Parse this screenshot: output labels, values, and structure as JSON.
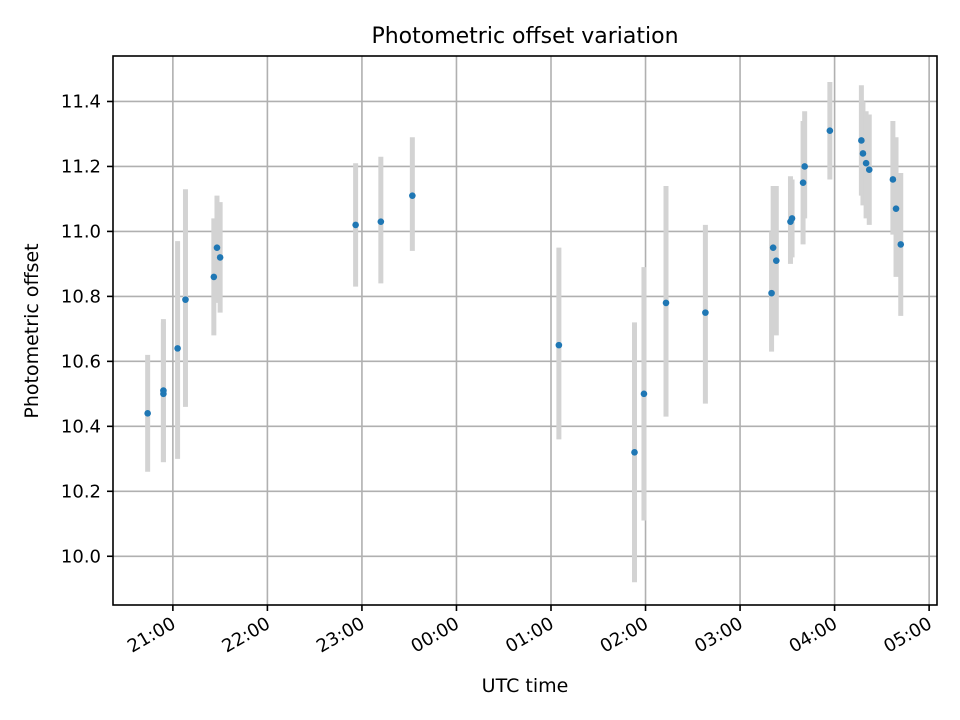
{
  "chart_data": {
    "type": "scatter",
    "title": "Photometric offset variation",
    "xlabel": "UTC time",
    "ylabel": "Photometric offset",
    "x_axis_type": "time",
    "xlim": [
      "20:22",
      "05:05"
    ],
    "ylim": [
      9.85,
      11.54
    ],
    "xticks": [
      "21:00",
      "22:00",
      "23:00",
      "00:00",
      "01:00",
      "02:00",
      "03:00",
      "04:00",
      "05:00"
    ],
    "yticks": [
      10.0,
      10.2,
      10.4,
      10.6,
      10.8,
      11.0,
      11.2,
      11.4
    ],
    "grid": true,
    "point_color": "#1f77b4",
    "errorbar_color": "#d3d3d3",
    "series": [
      {
        "points": [
          {
            "t": "20:44",
            "y": 10.44,
            "lo": 10.26,
            "hi": 10.62
          },
          {
            "t": "20:54",
            "y": 10.51,
            "lo": 10.29,
            "hi": 10.73
          },
          {
            "t": "20:54",
            "y": 10.5,
            "lo": 10.29,
            "hi": 10.72
          },
          {
            "t": "21:03",
            "y": 10.64,
            "lo": 10.3,
            "hi": 10.97
          },
          {
            "t": "21:08",
            "y": 10.79,
            "lo": 10.46,
            "hi": 11.13
          },
          {
            "t": "21:26",
            "y": 10.86,
            "lo": 10.68,
            "hi": 11.04
          },
          {
            "t": "21:28",
            "y": 10.95,
            "lo": 10.78,
            "hi": 11.11
          },
          {
            "t": "21:30",
            "y": 10.92,
            "lo": 10.75,
            "hi": 11.09
          },
          {
            "t": "22:56",
            "y": 11.02,
            "lo": 10.83,
            "hi": 11.21
          },
          {
            "t": "23:12",
            "y": 11.03,
            "lo": 10.84,
            "hi": 11.23
          },
          {
            "t": "23:32",
            "y": 11.11,
            "lo": 10.94,
            "hi": 11.29
          },
          {
            "t": "01:05",
            "y": 10.65,
            "lo": 10.36,
            "hi": 10.95
          },
          {
            "t": "01:53",
            "y": 10.32,
            "lo": 9.92,
            "hi": 10.72
          },
          {
            "t": "01:59",
            "y": 10.5,
            "lo": 10.11,
            "hi": 10.89
          },
          {
            "t": "02:13",
            "y": 10.78,
            "lo": 10.43,
            "hi": 11.14
          },
          {
            "t": "02:38",
            "y": 10.75,
            "lo": 10.47,
            "hi": 11.02
          },
          {
            "t": "03:20",
            "y": 10.81,
            "lo": 10.63,
            "hi": 11.0
          },
          {
            "t": "03:21",
            "y": 10.95,
            "lo": 10.77,
            "hi": 11.14
          },
          {
            "t": "03:23",
            "y": 10.91,
            "lo": 10.68,
            "hi": 11.14
          },
          {
            "t": "03:32",
            "y": 11.03,
            "lo": 10.9,
            "hi": 11.17
          },
          {
            "t": "03:33",
            "y": 11.04,
            "lo": 10.92,
            "hi": 11.16
          },
          {
            "t": "03:40",
            "y": 11.15,
            "lo": 10.96,
            "hi": 11.34
          },
          {
            "t": "03:41",
            "y": 11.2,
            "lo": 11.04,
            "hi": 11.37
          },
          {
            "t": "03:57",
            "y": 11.31,
            "lo": 11.16,
            "hi": 11.46
          },
          {
            "t": "04:17",
            "y": 11.28,
            "lo": 11.11,
            "hi": 11.45
          },
          {
            "t": "04:18",
            "y": 11.24,
            "lo": 11.08,
            "hi": 11.4
          },
          {
            "t": "04:20",
            "y": 11.21,
            "lo": 11.04,
            "hi": 11.37
          },
          {
            "t": "04:22",
            "y": 11.19,
            "lo": 11.02,
            "hi": 11.36
          },
          {
            "t": "04:37",
            "y": 11.16,
            "lo": 10.99,
            "hi": 11.34
          },
          {
            "t": "04:39",
            "y": 11.07,
            "lo": 10.86,
            "hi": 11.29
          },
          {
            "t": "04:42",
            "y": 10.96,
            "lo": 10.74,
            "hi": 11.18
          }
        ]
      }
    ]
  }
}
